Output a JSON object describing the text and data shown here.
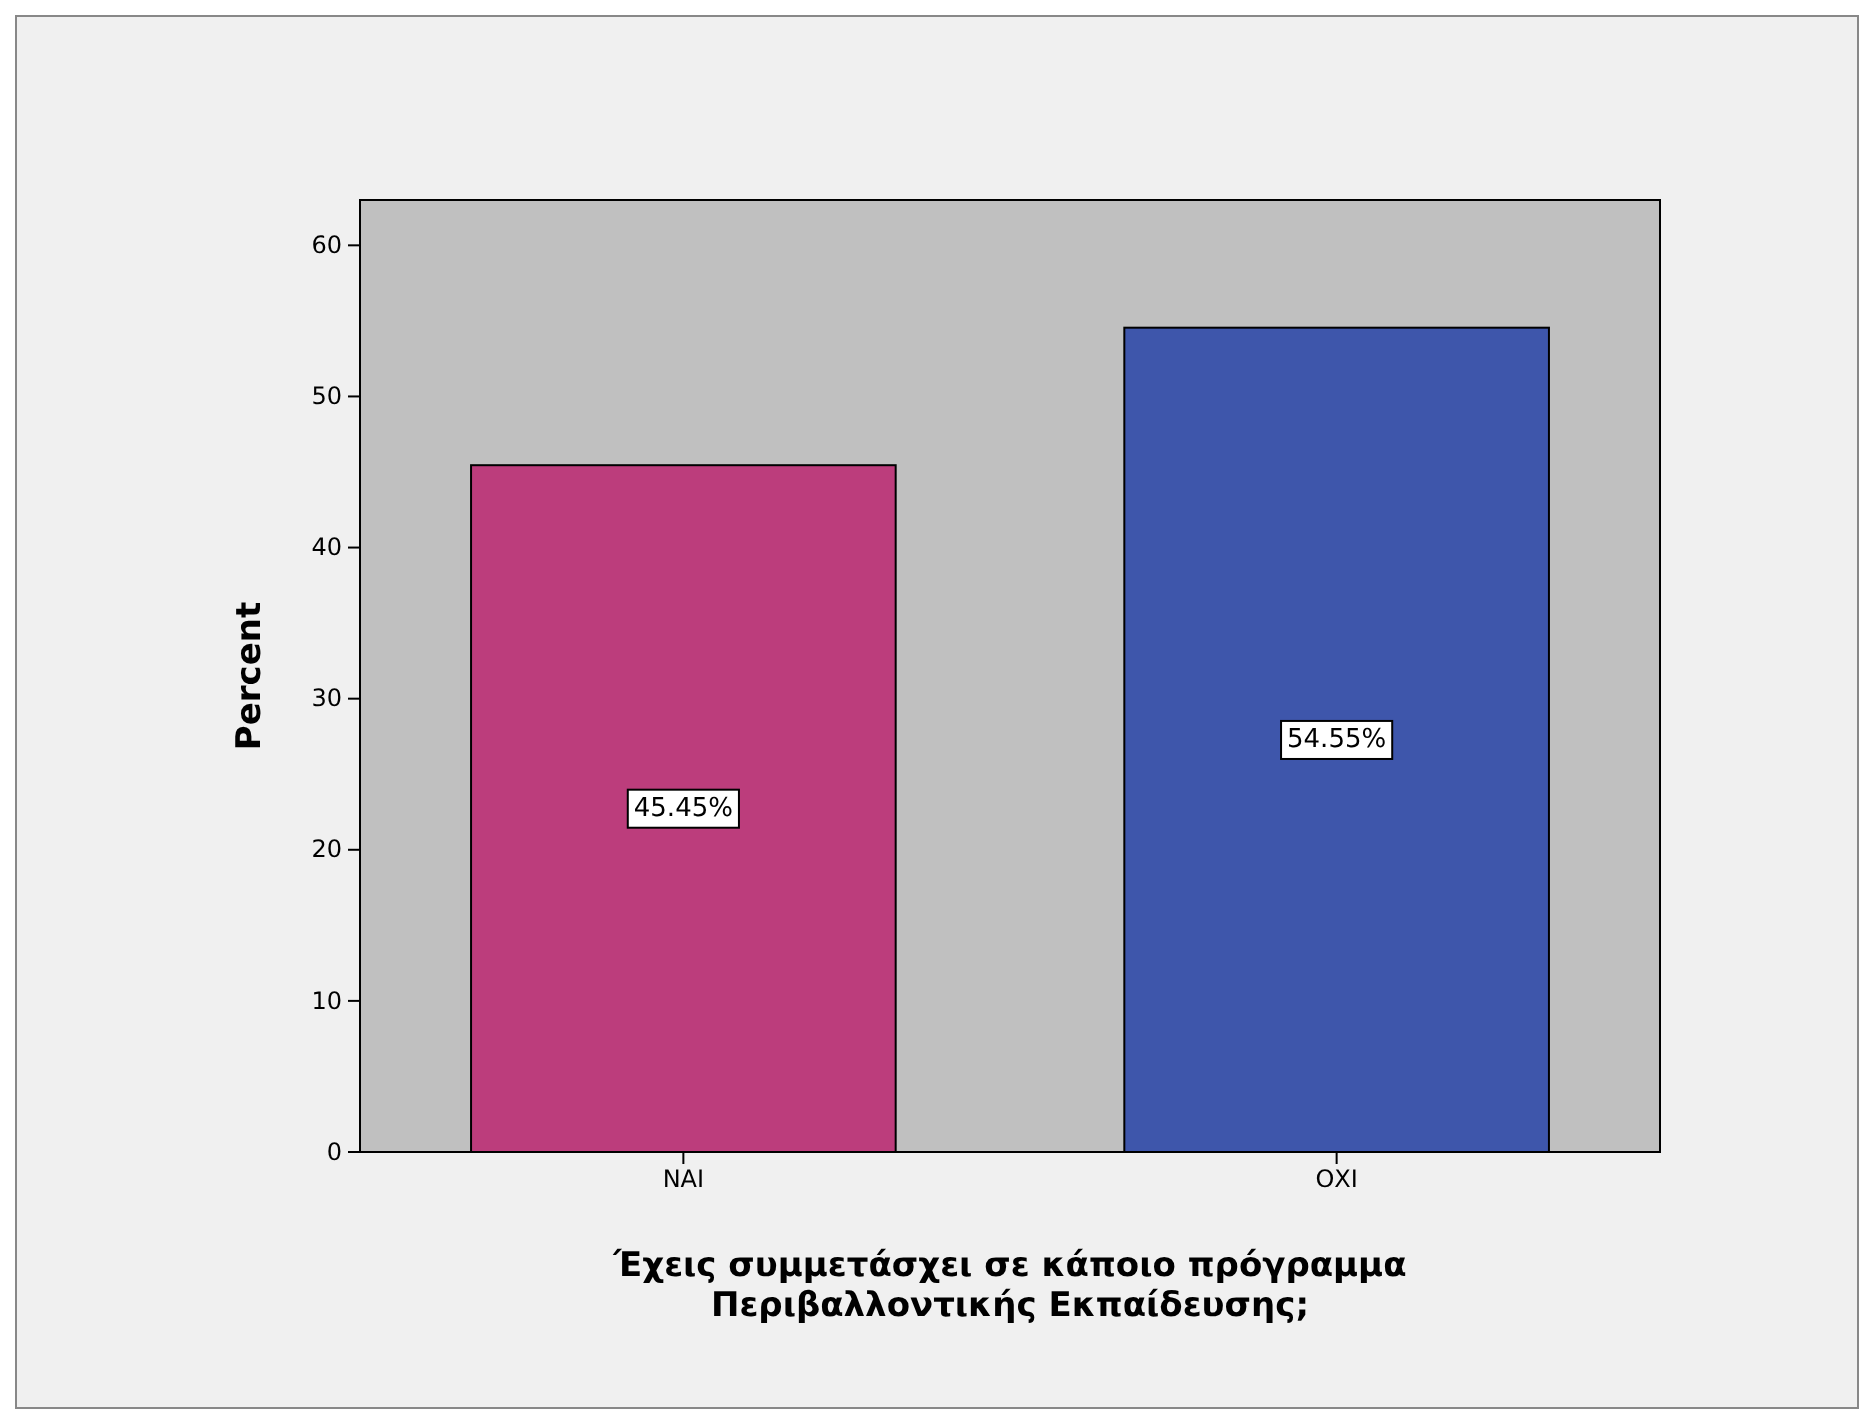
{
  "chart_data": {
    "type": "bar",
    "categories": [
      "ΝΑΙ",
      "ΟΧΙ"
    ],
    "values": [
      45.45,
      54.55
    ],
    "colors": [
      "#bc3d7c",
      "#3e56ab"
    ],
    "value_labels": [
      "45.45%",
      "54.55%"
    ],
    "xlabel": "Έχεις συμμετάσχει σε κάποιο πρόγραμμα Περιβαλλοντικής Εκπαίδευσης;",
    "ylabel": "Percent",
    "ylim": [
      0,
      63
    ],
    "yticks": [
      0,
      10,
      20,
      30,
      40,
      50,
      60
    ]
  }
}
